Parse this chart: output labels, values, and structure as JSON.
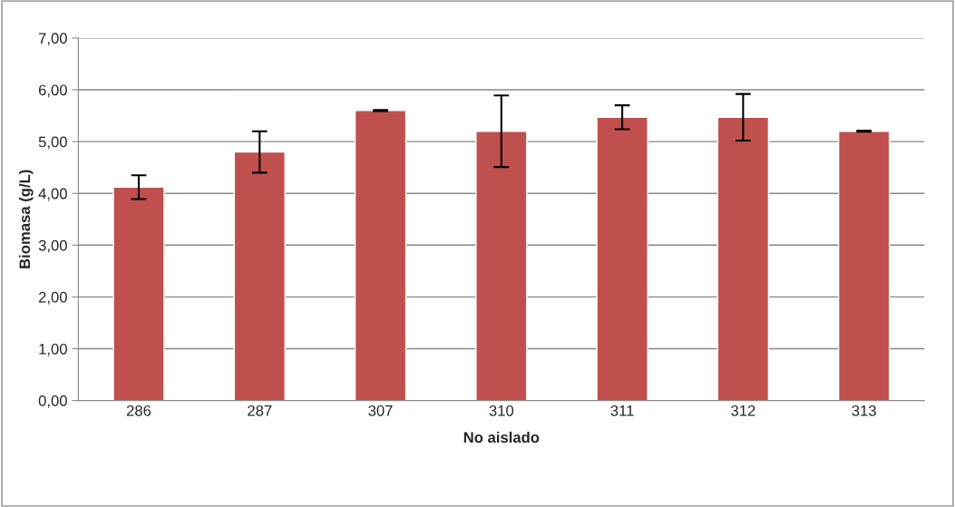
{
  "chart_data": {
    "type": "bar",
    "xlabel": "No aislado",
    "ylabel": "Biomasa (g/L)",
    "categories": [
      "286",
      "287",
      "307",
      "310",
      "311",
      "312",
      "313"
    ],
    "values": [
      4.12,
      4.8,
      5.6,
      5.2,
      5.47,
      5.47,
      5.2
    ],
    "errors": [
      0.23,
      0.4,
      0.01,
      0.69,
      0.23,
      0.45,
      0.01
    ],
    "color": "#c0504d",
    "ylim": [
      0,
      7
    ],
    "yticks": [
      {
        "value": 0,
        "label": "0,00"
      },
      {
        "value": 1,
        "label": "1,00"
      },
      {
        "value": 2,
        "label": "2,00"
      },
      {
        "value": 3,
        "label": "3,00"
      },
      {
        "value": 4,
        "label": "4,00"
      },
      {
        "value": 5,
        "label": "5,00"
      },
      {
        "value": 6,
        "label": "6,00"
      },
      {
        "value": 7,
        "label": "7,00"
      }
    ],
    "grid": "y",
    "legend": false
  }
}
